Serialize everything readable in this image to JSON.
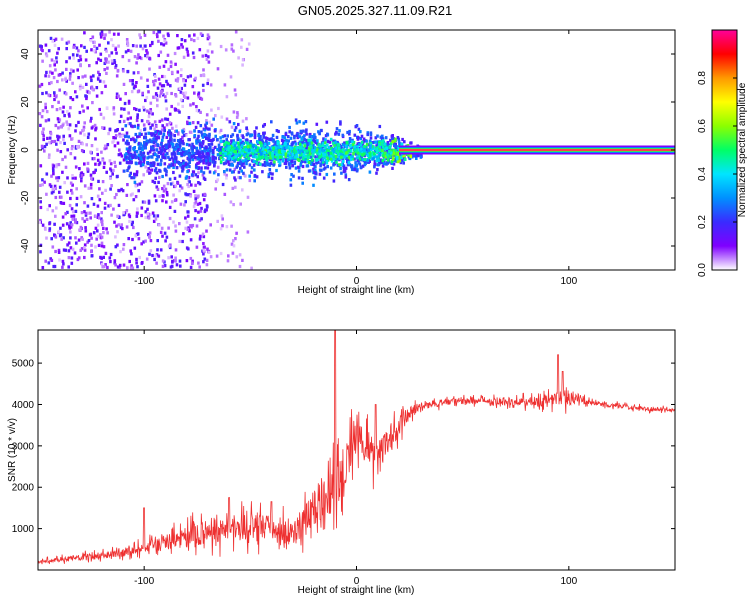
{
  "title": "GN05.2025.327.11.09.R21",
  "chart_data": [
    {
      "type": "heatmap",
      "name": "spectrogram",
      "xlabel": "Height of straight line (km)",
      "ylabel": "Frequency (Hz)",
      "xlim": [
        -150,
        150
      ],
      "ylim": [
        -50,
        50
      ],
      "xticks": [
        -100,
        0,
        100
      ],
      "yticks": [
        -40,
        -20,
        0,
        20,
        40
      ],
      "colorbar": {
        "label": "Normalized spectral amplitude",
        "range": [
          0.0,
          1.0
        ],
        "ticks": [
          0.0,
          0.2,
          0.4,
          0.6,
          0.8
        ],
        "colormap": [
          "#ffffff",
          "#7f00ff",
          "#3a2bff",
          "#0090ff",
          "#00e5ff",
          "#00ff66",
          "#8cff00",
          "#ffff00",
          "#ff9900",
          "#ff0000",
          "#ff0099"
        ]
      },
      "features": [
        {
          "x_range": [
            -150,
            -70
          ],
          "frequency_spread_hz": 50,
          "amplitude": 0.05,
          "pattern": "sparse scatter"
        },
        {
          "x_range": [
            -110,
            30
          ],
          "frequency_spread_hz": 10,
          "amplitude": 0.25,
          "pattern": "dense band"
        },
        {
          "x_range": [
            -65,
            25
          ],
          "frequency_spread_hz": 4,
          "amplitude": 0.5,
          "pattern": "central band"
        },
        {
          "x_range": [
            20,
            150
          ],
          "frequency_hz": 0,
          "amplitude": 1.0,
          "pattern": "narrow line"
        }
      ]
    },
    {
      "type": "line",
      "name": "snr",
      "xlabel": "Height of straight line (km)",
      "ylabel": "SNR (10 * v/v)",
      "xlim": [
        -150,
        150
      ],
      "ylim": [
        0,
        5800
      ],
      "xticks": [
        -100,
        0,
        100
      ],
      "yticks": [
        1000,
        2000,
        3000,
        4000,
        5000
      ],
      "color": "#ee3030",
      "envelope": {
        "x": [
          -150,
          -130,
          -110,
          -95,
          -80,
          -70,
          -60,
          -50,
          -40,
          -30,
          -25,
          -20,
          -15,
          -10,
          -5,
          0,
          5,
          10,
          15,
          20,
          25,
          30,
          40,
          60,
          80,
          90,
          100,
          110,
          120,
          135,
          150
        ],
        "y": [
          200,
          300,
          420,
          600,
          800,
          920,
          1000,
          1050,
          1000,
          900,
          1200,
          1500,
          1700,
          2000,
          2600,
          3300,
          3000,
          2700,
          3100,
          3500,
          3800,
          3950,
          4050,
          4100,
          4050,
          4100,
          4200,
          4050,
          3980,
          3900,
          3850
        ]
      },
      "noise_amplitude": {
        "x": [
          -150,
          -100,
          -80,
          -50,
          -30,
          -20,
          -10,
          0,
          10,
          20,
          30,
          60,
          90,
          100,
          110,
          150
        ],
        "y": [
          80,
          250,
          600,
          700,
          700,
          900,
          1200,
          1100,
          900,
          500,
          200,
          150,
          300,
          450,
          120,
          100
        ]
      },
      "spikes": [
        {
          "x": -10,
          "y": 5800
        },
        {
          "x": 9,
          "y": 4000
        },
        {
          "x": 95,
          "y": 5200
        },
        {
          "x": 97,
          "y": 4800
        },
        {
          "x": -60,
          "y": 1750
        },
        {
          "x": -100,
          "y": 1500
        },
        {
          "x": -40,
          "y": 1650
        }
      ]
    }
  ]
}
